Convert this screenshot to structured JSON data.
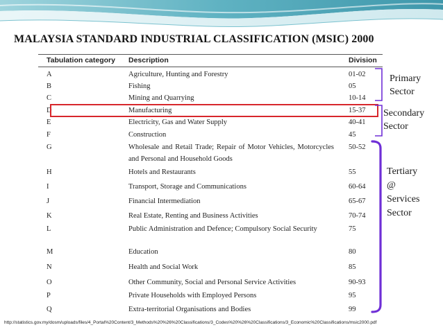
{
  "title": "MALAYSIA STANDARD INDUSTRIAL CLASSIFICATION (MSIC) 2000",
  "table": {
    "headers": {
      "category": "Tabulation category",
      "description": "Description",
      "division": "Division"
    },
    "rows": [
      {
        "category": "A",
        "description": "Agriculture, Hunting and Forestry",
        "division": "01-02"
      },
      {
        "category": "B",
        "description": "Fishing",
        "division": "05"
      },
      {
        "category": "C",
        "description": "Mining and Quarrying",
        "division": "10-14"
      },
      {
        "category": "D",
        "description": "Manufacturing",
        "division": "15-37"
      },
      {
        "category": "E",
        "description": "Electricity, Gas and Water Supply",
        "division": "40-41"
      },
      {
        "category": "F",
        "description": "Construction",
        "division": "45"
      },
      {
        "category": "G",
        "description": "Wholesale and Retail Trade; Repair of Motor Vehicles, Motorcycles and Personal and Household Goods",
        "division": "50-52"
      },
      {
        "category": "H",
        "description": "Hotels and Restaurants",
        "division": "55"
      },
      {
        "category": "I",
        "description": "Transport, Storage and Communications",
        "division": "60-64"
      },
      {
        "category": "J",
        "description": "Financial Intermediation",
        "division": "65-67"
      },
      {
        "category": "K",
        "description": "Real Estate, Renting and Business Activities",
        "division": "70-74"
      },
      {
        "category": "L",
        "description": "Public Administration and Defence; Compulsory Social Security",
        "division": "75"
      },
      {
        "category": "M",
        "description": "Education",
        "division": "80"
      },
      {
        "category": "N",
        "description": "Health and Social Work",
        "division": "85"
      },
      {
        "category": "O",
        "description": "Other Community, Social and Personal Service Activities",
        "division": "90-93"
      },
      {
        "category": "P",
        "description": "Private Households with Employed Persons",
        "division": "95"
      },
      {
        "category": "Q",
        "description": "Extra-territorial Organisations and Bodies",
        "division": "99"
      }
    ]
  },
  "sectors": {
    "primary": [
      "Primary",
      "Sector"
    ],
    "secondary": [
      "Secondary",
      "Sector"
    ],
    "tertiary": [
      "Tertiary",
      "@",
      "Services",
      "Sector"
    ]
  },
  "colors": {
    "highlight": "#d7262b",
    "brace": "#6f2fd6",
    "banner_teal": "#5fb2c2",
    "banner_light": "#d6eef2"
  },
  "source_url": "http://statistics.gov.my/dosm/uploads/files/4_Portal%20Content/3_Methods%20%26%20Classifications/3_Codes%20%26%20Classifications/3_Economic%20Classifications/msic2000.pdf"
}
